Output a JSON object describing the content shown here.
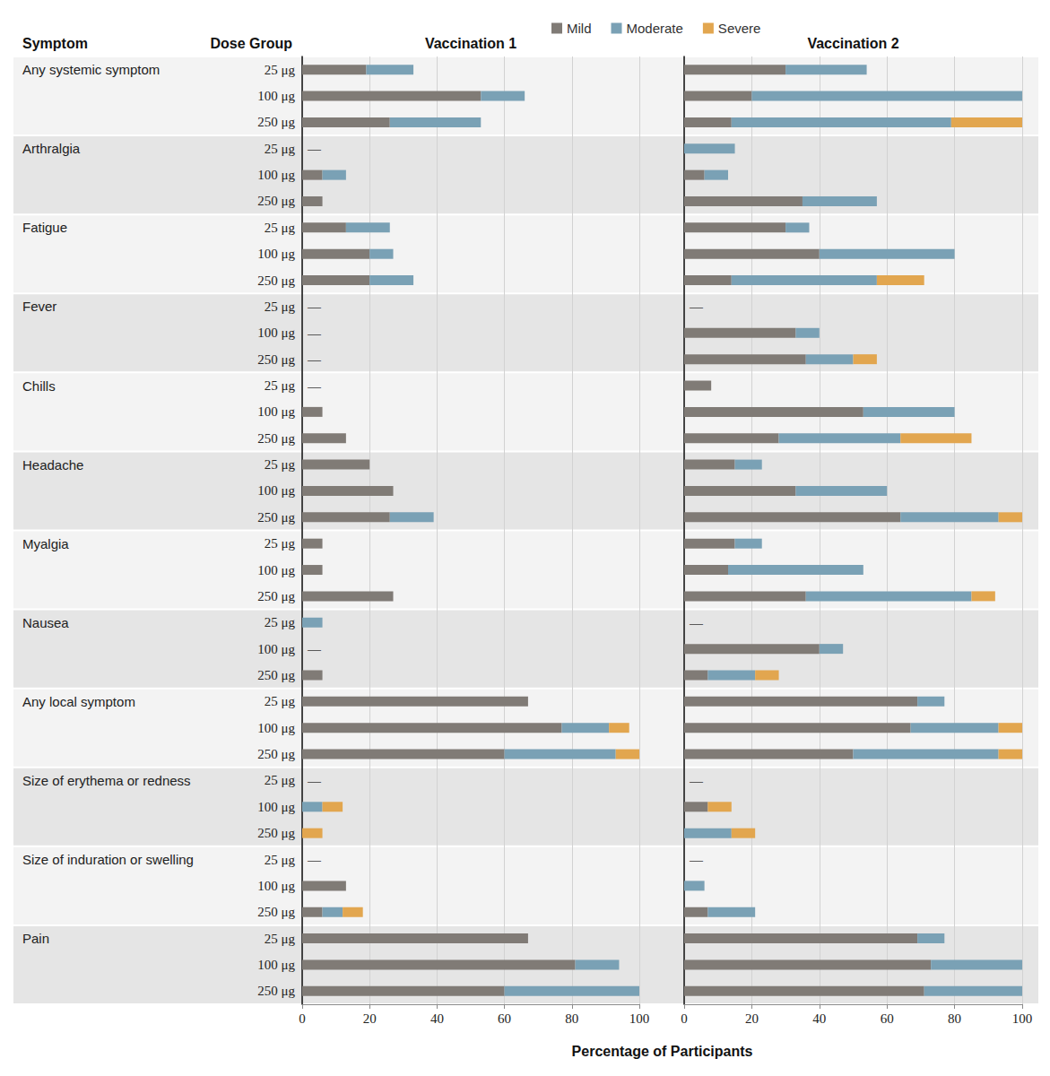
{
  "headers": {
    "symptom": "Symptom",
    "dose_group": "Dose Group"
  },
  "x_label": "Percentage of Participants",
  "row_groups": [
    {
      "label": "Any systemic symptom",
      "count": 3
    },
    {
      "label": "Arthralgia",
      "count": 3
    },
    {
      "label": "Fatigue",
      "count": 3
    },
    {
      "label": "Fever",
      "count": 3
    },
    {
      "label": "Chills",
      "count": 3
    },
    {
      "label": "Headache",
      "count": 3
    },
    {
      "label": "Myalgia",
      "count": 3
    },
    {
      "label": "Nausea",
      "count": 3
    },
    {
      "label": "Any local symptom",
      "count": 3
    },
    {
      "label": "Size of erythema or redness",
      "count": 3
    },
    {
      "label": "Size of induration or swelling",
      "count": 3
    },
    {
      "label": "Pain",
      "count": 3
    }
  ],
  "chart_data": [
    {
      "type": "bar",
      "title": "Vaccination 1",
      "orientation": "horizontal",
      "stacked": true,
      "grid": true,
      "legend": "top",
      "categories": [
        "25 μg",
        "100 μg",
        "250 μg",
        "25 μg",
        "100 μg",
        "250 μg",
        "25 μg",
        "100 μg",
        "250 μg",
        "25 μg",
        "100 μg",
        "250 μg",
        "25 μg",
        "100 μg",
        "250 μg",
        "25 μg",
        "100 μg",
        "250 μg",
        "25 μg",
        "100 μg",
        "250 μg",
        "25 μg",
        "100 μg",
        "250 μg",
        "25 μg",
        "100 μg",
        "250 μg",
        "25 μg",
        "100 μg",
        "250 μg",
        "25 μg",
        "100 μg",
        "250 μg",
        "25 μg",
        "100 μg",
        "250 μg"
      ],
      "xlim": [
        0,
        100
      ],
      "xticks": [
        0,
        20,
        40,
        60,
        80,
        100
      ],
      "series": [
        {
          "name": "Mild",
          "color": "#807b76",
          "values": [
            19,
            53,
            26,
            0,
            6,
            6,
            13,
            20,
            20,
            0,
            0,
            0,
            0,
            6,
            13,
            20,
            27,
            26,
            6,
            6,
            27,
            0,
            0,
            6,
            67,
            77,
            60,
            0,
            0,
            0,
            0,
            13,
            6,
            67,
            81,
            60
          ]
        },
        {
          "name": "Moderate",
          "color": "#7aa1b5",
          "values": [
            14,
            13,
            27,
            0,
            7,
            0,
            13,
            7,
            13,
            0,
            0,
            0,
            0,
            0,
            0,
            0,
            0,
            13,
            0,
            0,
            0,
            6,
            0,
            0,
            0,
            14,
            33,
            0,
            6,
            0,
            0,
            0,
            6,
            0,
            13,
            40
          ]
        },
        {
          "name": "Severe",
          "color": "#e2a64f",
          "values": [
            0,
            0,
            0,
            0,
            0,
            0,
            0,
            0,
            0,
            0,
            0,
            0,
            0,
            0,
            0,
            0,
            0,
            0,
            0,
            0,
            0,
            0,
            0,
            0,
            0,
            6,
            7,
            0,
            6,
            6,
            0,
            0,
            6,
            0,
            0,
            0
          ]
        }
      ],
      "annotations": [
        {
          "category": 3,
          "text": "—"
        },
        {
          "category": 9,
          "text": "—"
        },
        {
          "category": 10,
          "text": "—"
        },
        {
          "category": 11,
          "text": "—"
        },
        {
          "category": 12,
          "text": "—"
        },
        {
          "category": 22,
          "text": "—"
        },
        {
          "category": 27,
          "text": "—"
        },
        {
          "category": 30,
          "text": "—"
        }
      ]
    },
    {
      "type": "bar",
      "title": "Vaccination 2",
      "orientation": "horizontal",
      "stacked": true,
      "grid": true,
      "tick_labels": "x",
      "categories": [
        "25 μg",
        "100 μg",
        "250 μg",
        "25 μg",
        "100 μg",
        "250 μg",
        "25 μg",
        "100 μg",
        "250 μg",
        "25 μg",
        "100 μg",
        "250 μg",
        "25 μg",
        "100 μg",
        "250 μg",
        "25 μg",
        "100 μg",
        "250 μg",
        "25 μg",
        "100 μg",
        "250 μg",
        "25 μg",
        "100 μg",
        "250 μg",
        "25 μg",
        "100 μg",
        "250 μg",
        "25 μg",
        "100 μg",
        "250 μg",
        "25 μg",
        "100 μg",
        "250 μg",
        "25 μg",
        "100 μg",
        "250 μg"
      ],
      "xlim": [
        0,
        100
      ],
      "xticks": [
        0,
        20,
        40,
        60,
        80,
        100
      ],
      "series": [
        {
          "name": "Mild",
          "color": "#807b76",
          "values": [
            30,
            20,
            14,
            0,
            6,
            35,
            30,
            40,
            14,
            0,
            33,
            36,
            8,
            53,
            28,
            15,
            33,
            64,
            15,
            13,
            36,
            0,
            40,
            7,
            69,
            67,
            50,
            0,
            7,
            0,
            0,
            0,
            7,
            69,
            73,
            71
          ]
        },
        {
          "name": "Moderate",
          "color": "#7aa1b5",
          "values": [
            24,
            80,
            65,
            15,
            7,
            22,
            7,
            40,
            43,
            0,
            7,
            14,
            0,
            27,
            36,
            8,
            27,
            29,
            8,
            40,
            49,
            0,
            7,
            14,
            8,
            26,
            43,
            0,
            0,
            14,
            0,
            6,
            14,
            8,
            27,
            29
          ]
        },
        {
          "name": "Severe",
          "color": "#e2a64f",
          "values": [
            0,
            0,
            21,
            0,
            0,
            0,
            0,
            0,
            14,
            0,
            0,
            7,
            0,
            0,
            21,
            0,
            0,
            7,
            0,
            0,
            7,
            0,
            0,
            7,
            0,
            7,
            7,
            0,
            7,
            7,
            0,
            0,
            0,
            0,
            0,
            0
          ]
        }
      ],
      "annotations": [
        {
          "category": 9,
          "text": "—"
        },
        {
          "category": 21,
          "text": "—"
        },
        {
          "category": 27,
          "text": "—"
        },
        {
          "category": 30,
          "text": "—"
        }
      ]
    }
  ]
}
